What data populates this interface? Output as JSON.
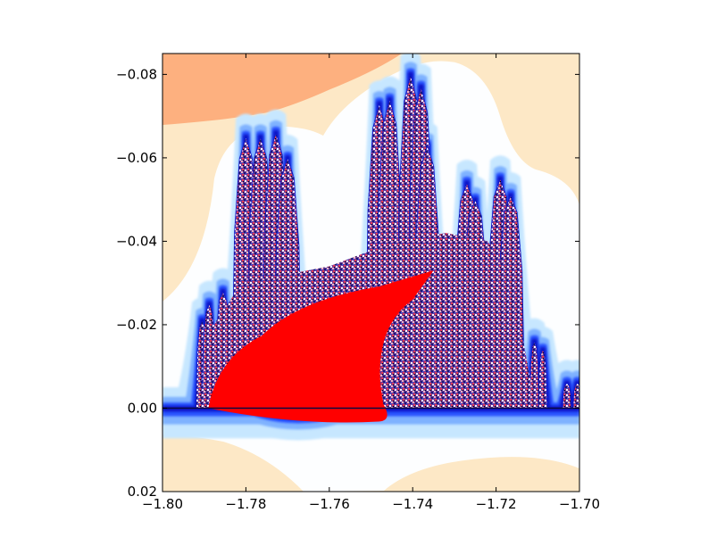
{
  "chart_data": {
    "type": "heatmap",
    "title": "",
    "xlabel": "",
    "ylabel": "",
    "xlim": [
      -1.8,
      -1.7
    ],
    "ylim": [
      0.02,
      -0.085
    ],
    "y_inverted": true,
    "grid": false,
    "legend": "none",
    "x_ticks": [
      -1.8,
      -1.78,
      -1.76,
      -1.74,
      -1.72,
      -1.7
    ],
    "x_tick_labels": [
      "−1.80",
      "−1.78",
      "−1.76",
      "−1.74",
      "−1.72",
      "−1.70"
    ],
    "y_ticks": [
      -0.08,
      -0.06,
      -0.04,
      -0.02,
      0.0,
      0.02
    ],
    "y_tick_labels": [
      "−0.08",
      "−0.06",
      "−0.04",
      "−0.02",
      "0.00",
      "0.02"
    ],
    "colors": {
      "far_orange": "#fdb07f",
      "far_peach": "#fde8c6",
      "near_white": "#fdfeff",
      "light_blue": "#c7e7ff",
      "mid_blue": "#7fb2ff",
      "blue": "#2a55ff",
      "dark_blue": "#0a17c9",
      "interior_red": "#ff0000",
      "speckle_light": "#f0b6c4",
      "speckle_dark": "#1a1a6e"
    },
    "spires": [
      {
        "x": -1.7905,
        "top": -0.021
      },
      {
        "x": -1.7888,
        "top": -0.025
      },
      {
        "x": -1.7855,
        "top": -0.028
      },
      {
        "x": -1.78,
        "top": -0.065
      },
      {
        "x": -1.7765,
        "top": -0.065
      },
      {
        "x": -1.7728,
        "top": -0.066
      },
      {
        "x": -1.77,
        "top": -0.06
      },
      {
        "x": -1.748,
        "top": -0.073
      },
      {
        "x": -1.7455,
        "top": -0.074
      },
      {
        "x": -1.7405,
        "top": -0.08
      },
      {
        "x": -1.738,
        "top": -0.077
      },
      {
        "x": -1.7365,
        "top": -0.063
      },
      {
        "x": -1.727,
        "top": -0.054
      },
      {
        "x": -1.725,
        "top": -0.05
      },
      {
        "x": -1.719,
        "top": -0.055
      },
      {
        "x": -1.7165,
        "top": -0.051
      },
      {
        "x": -1.7108,
        "top": -0.016
      },
      {
        "x": -1.7088,
        "top": -0.014
      },
      {
        "x": -1.703,
        "top": -0.006
      },
      {
        "x": -1.7005,
        "top": -0.006
      }
    ],
    "interior_region": {
      "x_range": [
        -1.789,
        -1.746
      ],
      "y_range": [
        -0.027,
        0.003
      ]
    }
  }
}
